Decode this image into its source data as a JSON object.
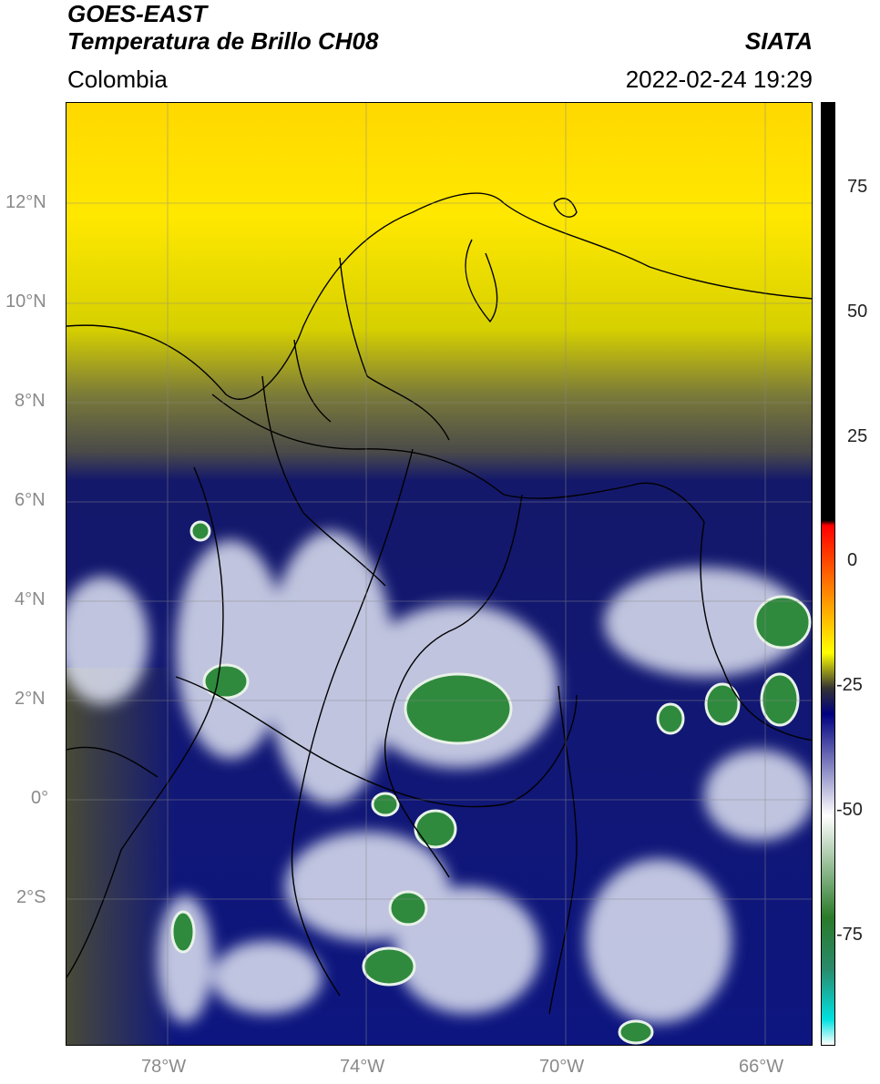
{
  "header": {
    "title_line1": "GOES-EAST",
    "title_line2": "Temperatura de Brillo CH08",
    "region": "Colombia",
    "brand": "SIATA",
    "timestamp": "2022-02-24 19:29"
  },
  "map": {
    "lat_labels": [
      "12°N",
      "10°N",
      "8°N",
      "6°N",
      "4°N",
      "2°N",
      "0°",
      "2°S"
    ],
    "lon_labels": [
      "78°W",
      "74°W",
      "70°W",
      "66°W"
    ]
  },
  "colorbar": {
    "tick_labels": [
      "75",
      "50",
      "25",
      "0",
      "-25",
      "-50",
      "-75"
    ],
    "stops": [
      {
        "value": 90,
        "color": "#000000"
      },
      {
        "value": 8,
        "color": "#000000"
      },
      {
        "value": 7,
        "color": "#ff0000"
      },
      {
        "value": -8,
        "color": "#ff9900"
      },
      {
        "value": -18,
        "color": "#ffff00"
      },
      {
        "value": -25,
        "color": "#333333"
      },
      {
        "value": -30,
        "color": "#000080"
      },
      {
        "value": -50,
        "color": "#ffffff"
      },
      {
        "value": -70,
        "color": "#2a7a2a"
      },
      {
        "value": -80,
        "color": "#2a8a6a"
      },
      {
        "value": -90,
        "color": "#00e0e0"
      },
      {
        "value": -95,
        "color": "#ffffff"
      }
    ]
  },
  "colors": {
    "warm_dry": "#ffe000",
    "mid": "#5a5a32",
    "cold": "#0d1680",
    "very_cold": "#e8ecf6",
    "coldest": "#2e8a3c"
  }
}
